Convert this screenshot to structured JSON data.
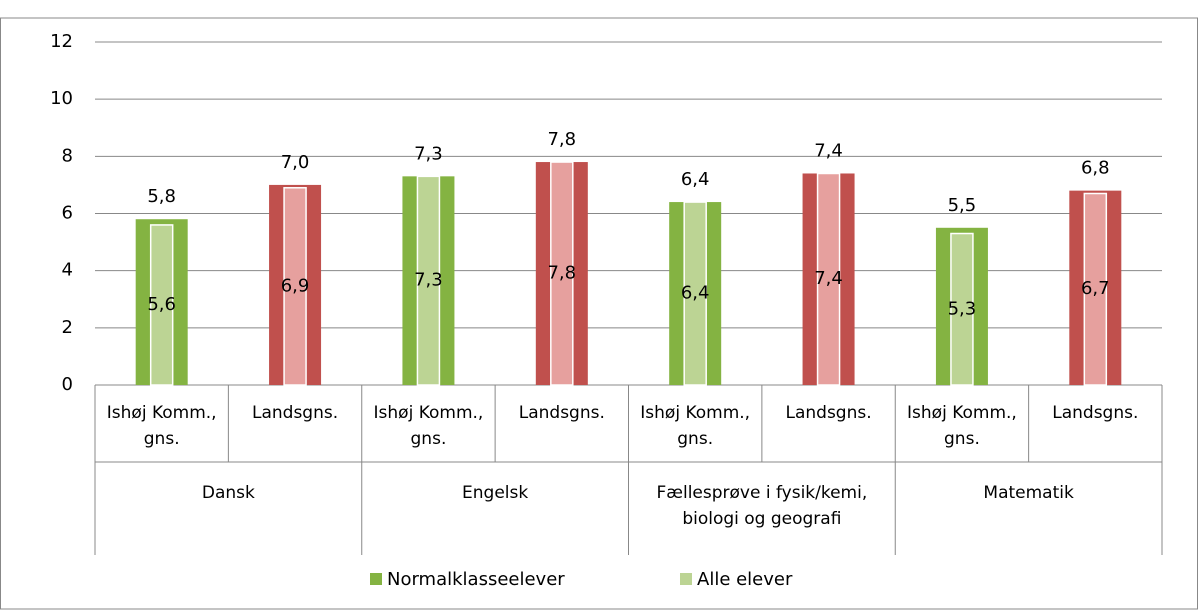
{
  "chart_data": {
    "type": "bar",
    "categories": [
      "Ishøj Komm., gns.",
      "Landsgns.",
      "Ishøj Komm., gns.",
      "Landsgns.",
      "Ishøj Komm., gns.",
      "Landsgns.",
      "Ishøj Komm., gns.",
      "Landsgns."
    ],
    "groups": [
      "Dansk",
      "Engelsk",
      "Fællesprøve i fysik/kemi, biologi og geografi",
      "Matematik"
    ],
    "series": [
      {
        "name": "Normalklasseelever",
        "color": "#84b342",
        "colors": [
          "#84b342",
          "#c0504d",
          "#84b342",
          "#c0504d",
          "#84b342",
          "#c0504d",
          "#84b342",
          "#c0504d"
        ],
        "values": [
          5.8,
          7.0,
          7.3,
          7.8,
          6.4,
          7.4,
          5.5,
          6.8
        ],
        "value_labels": [
          "5,8",
          "7,0",
          "7,3",
          "7,8",
          "6,4",
          "7,4",
          "5,5",
          "6,8"
        ]
      },
      {
        "name": "Alle elever",
        "color": "#bcd494",
        "colors": [
          "#bcd494",
          "#e6a09e",
          "#bcd494",
          "#e6a09e",
          "#bcd494",
          "#e6a09e",
          "#bcd494",
          "#e6a09e"
        ],
        "values": [
          5.6,
          6.9,
          7.3,
          7.8,
          6.4,
          7.4,
          5.3,
          6.7
        ],
        "value_labels": [
          "5,6",
          "6,9",
          "7,3",
          "7,8",
          "6,4",
          "7,4",
          "5,3",
          "6,7"
        ]
      }
    ],
    "ylim": [
      0,
      12
    ],
    "yticks": [
      0,
      2,
      4,
      6,
      8,
      10,
      12
    ],
    "grid": true,
    "legend": "bottom"
  }
}
